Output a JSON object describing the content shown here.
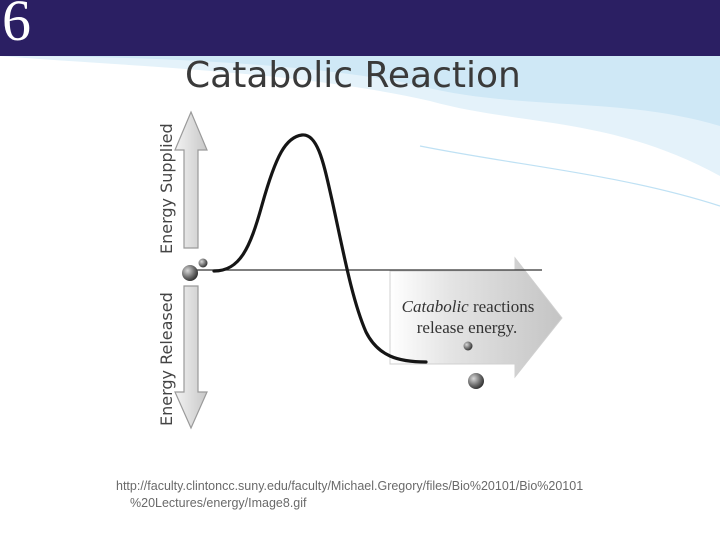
{
  "slide_number": "6",
  "title": "Catabolic Reaction",
  "diagram": {
    "axis_label_top": "Energy Supplied",
    "axis_label_bottom": "Energy Released",
    "arrow_text_line1_italic": "Catabolic",
    "arrow_text_line1_rest": " reactions",
    "arrow_text_line2": "release energy."
  },
  "source": {
    "line1": "http://faculty.clintoncc.suny.edu/faculty/Michael.Gregory/files/Bio%20101/Bio%20101",
    "line2": "%20Lectures/energy/Image8.gif"
  },
  "colors": {
    "header_bar": "#2b1f63",
    "wave_light": "#d7ecf7",
    "wave_mid": "#b4dcf1"
  }
}
